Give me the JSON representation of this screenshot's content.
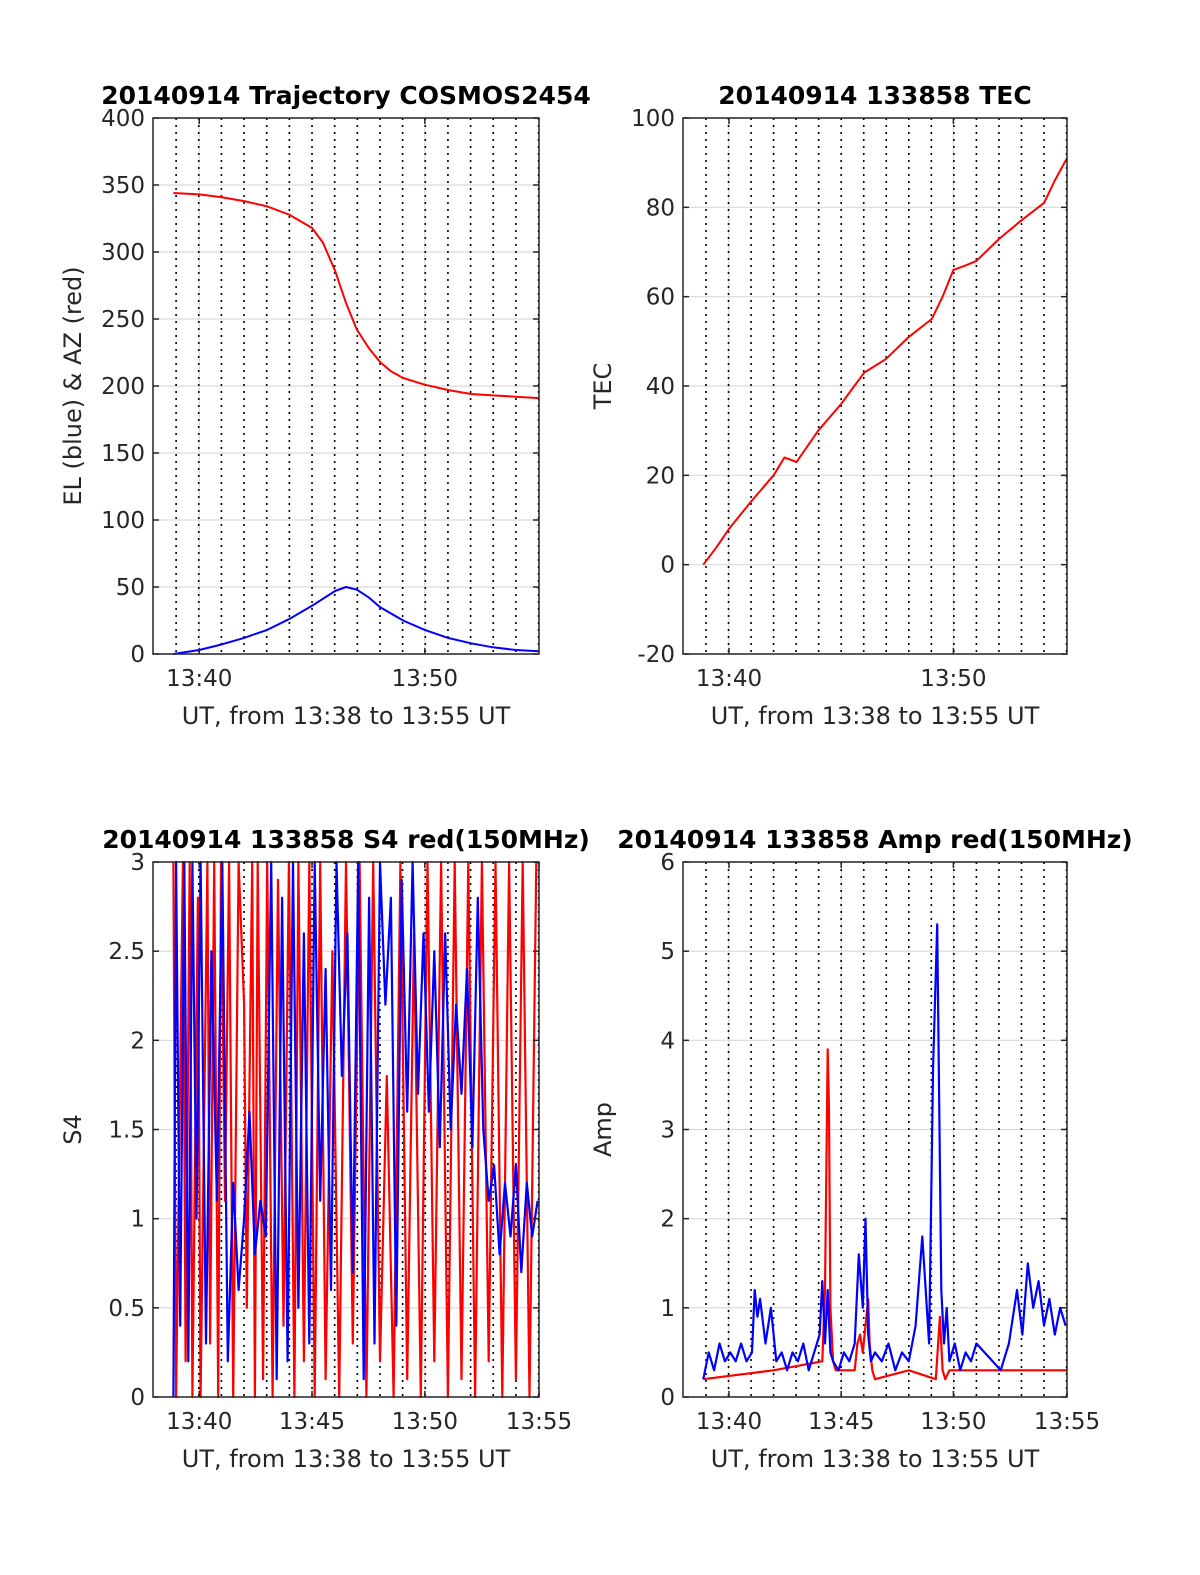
{
  "figure": {
    "background": "#ffffff"
  },
  "colors": {
    "red": "#ff0000",
    "blue": "#0000ff",
    "grid": "#d9d9d9",
    "axes": "#262626"
  },
  "chart_data": [
    {
      "id": "trajectory",
      "type": "line",
      "title": "20140914 Trajectory COSMOS2454",
      "xlabel": "UT, from 13:38 to 13:55 UT",
      "ylabel": "EL (blue) & AZ (red)",
      "xlim": [
        13.633,
        13.917
      ],
      "ylim": [
        0,
        400
      ],
      "yticks": [
        0,
        50,
        100,
        150,
        200,
        250,
        300,
        350,
        400
      ],
      "ytick_labels": [
        "0",
        "50",
        "100",
        "150",
        "200",
        "250",
        "300",
        "350",
        "400"
      ],
      "xticks": [
        13.667,
        13.833
      ],
      "xtick_labels": [
        "13:40",
        "13:50"
      ],
      "grid": true,
      "minute_markers": true,
      "series": [
        {
          "color": "#ff0000",
          "x": [
            13.648,
            13.667,
            13.683,
            13.7,
            13.717,
            13.733,
            13.75,
            13.758,
            13.767,
            13.775,
            13.783,
            13.792,
            13.8,
            13.808,
            13.817,
            13.833,
            13.85,
            13.867,
            13.883,
            13.9,
            13.917
          ],
          "y": [
            344,
            343,
            341,
            338,
            334,
            328,
            318,
            307,
            286,
            262,
            242,
            228,
            218,
            211,
            206,
            201,
            197,
            194,
            193,
            192,
            191
          ]
        },
        {
          "color": "#0000ff",
          "x": [
            13.648,
            13.667,
            13.683,
            13.7,
            13.717,
            13.733,
            13.75,
            13.767,
            13.775,
            13.783,
            13.792,
            13.8,
            13.817,
            13.833,
            13.85,
            13.867,
            13.883,
            13.9,
            13.917
          ],
          "y": [
            0,
            3,
            7,
            12,
            18,
            26,
            36,
            47,
            50,
            48,
            42,
            35,
            25,
            18,
            12,
            8,
            5,
            3,
            2
          ]
        }
      ]
    },
    {
      "id": "tec",
      "type": "line",
      "title": "20140914 133858 TEC",
      "xlabel": "UT, from 13:38 to 13:55 UT",
      "ylabel": "TEC",
      "xlim": [
        13.633,
        13.917
      ],
      "ylim": [
        -20,
        100
      ],
      "yticks": [
        -20,
        0,
        20,
        40,
        60,
        80,
        100
      ],
      "ytick_labels": [
        "-20",
        "0",
        "20",
        "40",
        "60",
        "80",
        "100"
      ],
      "xticks": [
        13.667,
        13.833
      ],
      "xtick_labels": [
        "13:40",
        "13:50"
      ],
      "grid": true,
      "minute_markers": true,
      "series": [
        {
          "color": "#ff0000",
          "x": [
            13.648,
            13.658,
            13.667,
            13.683,
            13.7,
            13.708,
            13.717,
            13.733,
            13.75,
            13.767,
            13.783,
            13.8,
            13.817,
            13.825,
            13.833,
            13.842,
            13.85,
            13.867,
            13.883,
            13.9,
            13.908,
            13.917
          ],
          "y": [
            0,
            4,
            8,
            14,
            20,
            24,
            23,
            30,
            36,
            43,
            46,
            51,
            55,
            60,
            66,
            67,
            68,
            73,
            77,
            81,
            86,
            91
          ]
        }
      ]
    },
    {
      "id": "s4",
      "type": "line",
      "title": "20140914 133858 S4 red(150MHz)",
      "xlabel": "UT, from 13:38 to 13:55 UT",
      "ylabel": "S4",
      "xlim": [
        13.633,
        13.917
      ],
      "ylim": [
        0,
        3
      ],
      "yticks": [
        0,
        0.5,
        1,
        1.5,
        2,
        2.5,
        3
      ],
      "ytick_labels": [
        "0",
        "0.5",
        "1",
        "1.5",
        "2",
        "2.5",
        "3"
      ],
      "xticks": [
        13.667,
        13.75,
        13.833,
        13.917
      ],
      "xtick_labels": [
        "13:40",
        "13:45",
        "13:50",
        "13:55"
      ],
      "grid": true,
      "minute_markers": true,
      "series": [
        {
          "color": "#ff0000",
          "x": [
            13.648,
            13.65,
            13.655,
            13.657,
            13.66,
            13.662,
            13.666,
            13.668,
            13.673,
            13.675,
            13.678,
            13.681,
            13.683,
            13.686,
            13.689,
            13.692,
            13.696,
            13.7,
            13.702,
            13.706,
            13.708,
            13.71,
            13.714,
            13.717,
            13.721,
            13.725,
            13.729,
            13.733,
            13.737,
            13.74,
            13.744,
            13.748,
            13.752,
            13.756,
            13.76,
            13.765,
            13.77,
            13.775,
            13.78,
            13.785,
            13.79,
            13.795,
            13.8,
            13.805,
            13.81,
            13.815,
            13.82,
            13.825,
            13.83,
            13.835,
            13.84,
            13.845,
            13.85,
            13.855,
            13.86,
            13.865,
            13.87,
            13.875,
            13.88,
            13.885,
            13.89,
            13.895,
            13.9,
            13.905,
            13.91,
            13.915
          ],
          "y": [
            3,
            0,
            3,
            0.2,
            3,
            0,
            2.8,
            0,
            3,
            0.3,
            3,
            0,
            3,
            1.1,
            3,
            0,
            3,
            2.2,
            0.5,
            3,
            0,
            3,
            0.1,
            3,
            0,
            2.9,
            0.4,
            3,
            0,
            3,
            0.2,
            3,
            0,
            3,
            0.1,
            2.5,
            0,
            3,
            0.3,
            3,
            0,
            3,
            0.2,
            1.8,
            0,
            3,
            0.1,
            2.6,
            0,
            3,
            0.2,
            3,
            0,
            3,
            0.1,
            3,
            0,
            3,
            0.2,
            3,
            0,
            3,
            0.1,
            3,
            0,
            3
          ]
        },
        {
          "color": "#0000ff",
          "x": [
            13.648,
            13.65,
            13.653,
            13.656,
            13.659,
            13.662,
            13.665,
            13.668,
            13.672,
            13.676,
            13.68,
            13.684,
            13.688,
            13.692,
            13.696,
            13.7,
            13.704,
            13.708,
            13.712,
            13.716,
            13.72,
            13.724,
            13.728,
            13.732,
            13.736,
            13.74,
            13.744,
            13.748,
            13.752,
            13.756,
            13.76,
            13.764,
            13.768,
            13.772,
            13.776,
            13.78,
            13.784,
            13.788,
            13.792,
            13.796,
            13.8,
            13.804,
            13.808,
            13.812,
            13.816,
            13.82,
            13.824,
            13.828,
            13.832,
            13.836,
            13.84,
            13.844,
            13.848,
            13.852,
            13.856,
            13.86,
            13.864,
            13.868,
            13.872,
            13.876,
            13.88,
            13.884,
            13.888,
            13.892,
            13.896,
            13.9,
            13.904,
            13.908,
            13.912,
            13.916
          ],
          "y": [
            0,
            3,
            0.4,
            3,
            0.2,
            3,
            1.0,
            3,
            0.3,
            2.5,
            1.1,
            3,
            0.2,
            1.2,
            0.6,
            1.0,
            1.6,
            0.8,
            1.1,
            0.9,
            3,
            0.1,
            2.8,
            0.2,
            3,
            0.5,
            2.6,
            0.3,
            3,
            1.1,
            2.4,
            0.6,
            3,
            1.8,
            2.6,
            0.7,
            3,
            0.1,
            2.8,
            0.3,
            3,
            2.2,
            2.8,
            0.4,
            2.9,
            1.6,
            3,
            1.7,
            2.6,
            1.6,
            2.5,
            1.4,
            2.6,
            1.5,
            2.2,
            1.7,
            2.4,
            1.4,
            2.8,
            1.5,
            1.1,
            1.3,
            0.8,
            1.2,
            0.9,
            1.3,
            0.7,
            1.2,
            0.9,
            1.1
          ]
        }
      ]
    },
    {
      "id": "amp",
      "type": "line",
      "title": "20140914 133858 Amp red(150MHz)",
      "xlabel": "UT, from 13:38 to 13:55 UT",
      "ylabel": "Amp",
      "xlim": [
        13.633,
        13.917
      ],
      "ylim": [
        0,
        6
      ],
      "yticks": [
        0,
        1,
        2,
        3,
        4,
        5,
        6
      ],
      "ytick_labels": [
        "0",
        "1",
        "2",
        "3",
        "4",
        "5",
        "6"
      ],
      "xticks": [
        13.667,
        13.75,
        13.833,
        13.917
      ],
      "xtick_labels": [
        "13:40",
        "13:45",
        "13:50",
        "13:55"
      ],
      "grid": true,
      "minute_markers": true,
      "series": [
        {
          "color": "#ff0000",
          "x": [
            13.648,
            13.7,
            13.736,
            13.738,
            13.74,
            13.741,
            13.742,
            13.744,
            13.746,
            13.76,
            13.762,
            13.764,
            13.766,
            13.768,
            13.77,
            13.771,
            13.773,
            13.775,
            13.8,
            13.82,
            13.823,
            13.825,
            13.827,
            13.83,
            13.917
          ],
          "y": [
            0.2,
            0.3,
            0.4,
            1.2,
            3.9,
            3.2,
            1.0,
            0.4,
            0.3,
            0.3,
            0.6,
            0.7,
            0.5,
            0.8,
            1.1,
            0.6,
            0.3,
            0.2,
            0.3,
            0.2,
            0.9,
            0.3,
            0.2,
            0.3,
            0.3
          ]
        },
        {
          "color": "#0000ff",
          "x": [
            13.648,
            13.652,
            13.656,
            13.66,
            13.664,
            13.668,
            13.672,
            13.676,
            13.68,
            13.684,
            13.686,
            13.688,
            13.69,
            13.694,
            13.698,
            13.702,
            13.706,
            13.71,
            13.714,
            13.718,
            13.722,
            13.726,
            13.73,
            13.734,
            13.736,
            13.738,
            13.74,
            13.742,
            13.744,
            13.748,
            13.752,
            13.756,
            13.76,
            13.763,
            13.766,
            13.768,
            13.77,
            13.772,
            13.775,
            13.78,
            13.785,
            13.79,
            13.795,
            13.8,
            13.805,
            13.81,
            13.815,
            13.818,
            13.821,
            13.824,
            13.826,
            13.828,
            13.83,
            13.834,
            13.838,
            13.842,
            13.846,
            13.85,
            13.856,
            13.862,
            13.868,
            13.874,
            13.88,
            13.884,
            13.888,
            13.892,
            13.896,
            13.9,
            13.904,
            13.908,
            13.912,
            13.916
          ],
          "y": [
            0.2,
            0.5,
            0.3,
            0.6,
            0.4,
            0.5,
            0.4,
            0.6,
            0.4,
            0.5,
            1.2,
            0.9,
            1.1,
            0.6,
            1.0,
            0.4,
            0.5,
            0.3,
            0.5,
            0.4,
            0.6,
            0.3,
            0.5,
            0.7,
            1.3,
            0.6,
            1.2,
            0.5,
            0.4,
            0.3,
            0.5,
            0.4,
            0.6,
            1.6,
            1.0,
            2.0,
            0.7,
            0.4,
            0.5,
            0.4,
            0.6,
            0.3,
            0.5,
            0.4,
            0.8,
            1.8,
            0.6,
            3.7,
            5.3,
            1.2,
            0.6,
            1.0,
            0.4,
            0.6,
            0.3,
            0.5,
            0.4,
            0.6,
            0.5,
            0.4,
            0.3,
            0.6,
            1.2,
            0.7,
            1.5,
            1.0,
            1.3,
            0.8,
            1.1,
            0.7,
            1.0,
            0.8
          ]
        }
      ]
    }
  ]
}
